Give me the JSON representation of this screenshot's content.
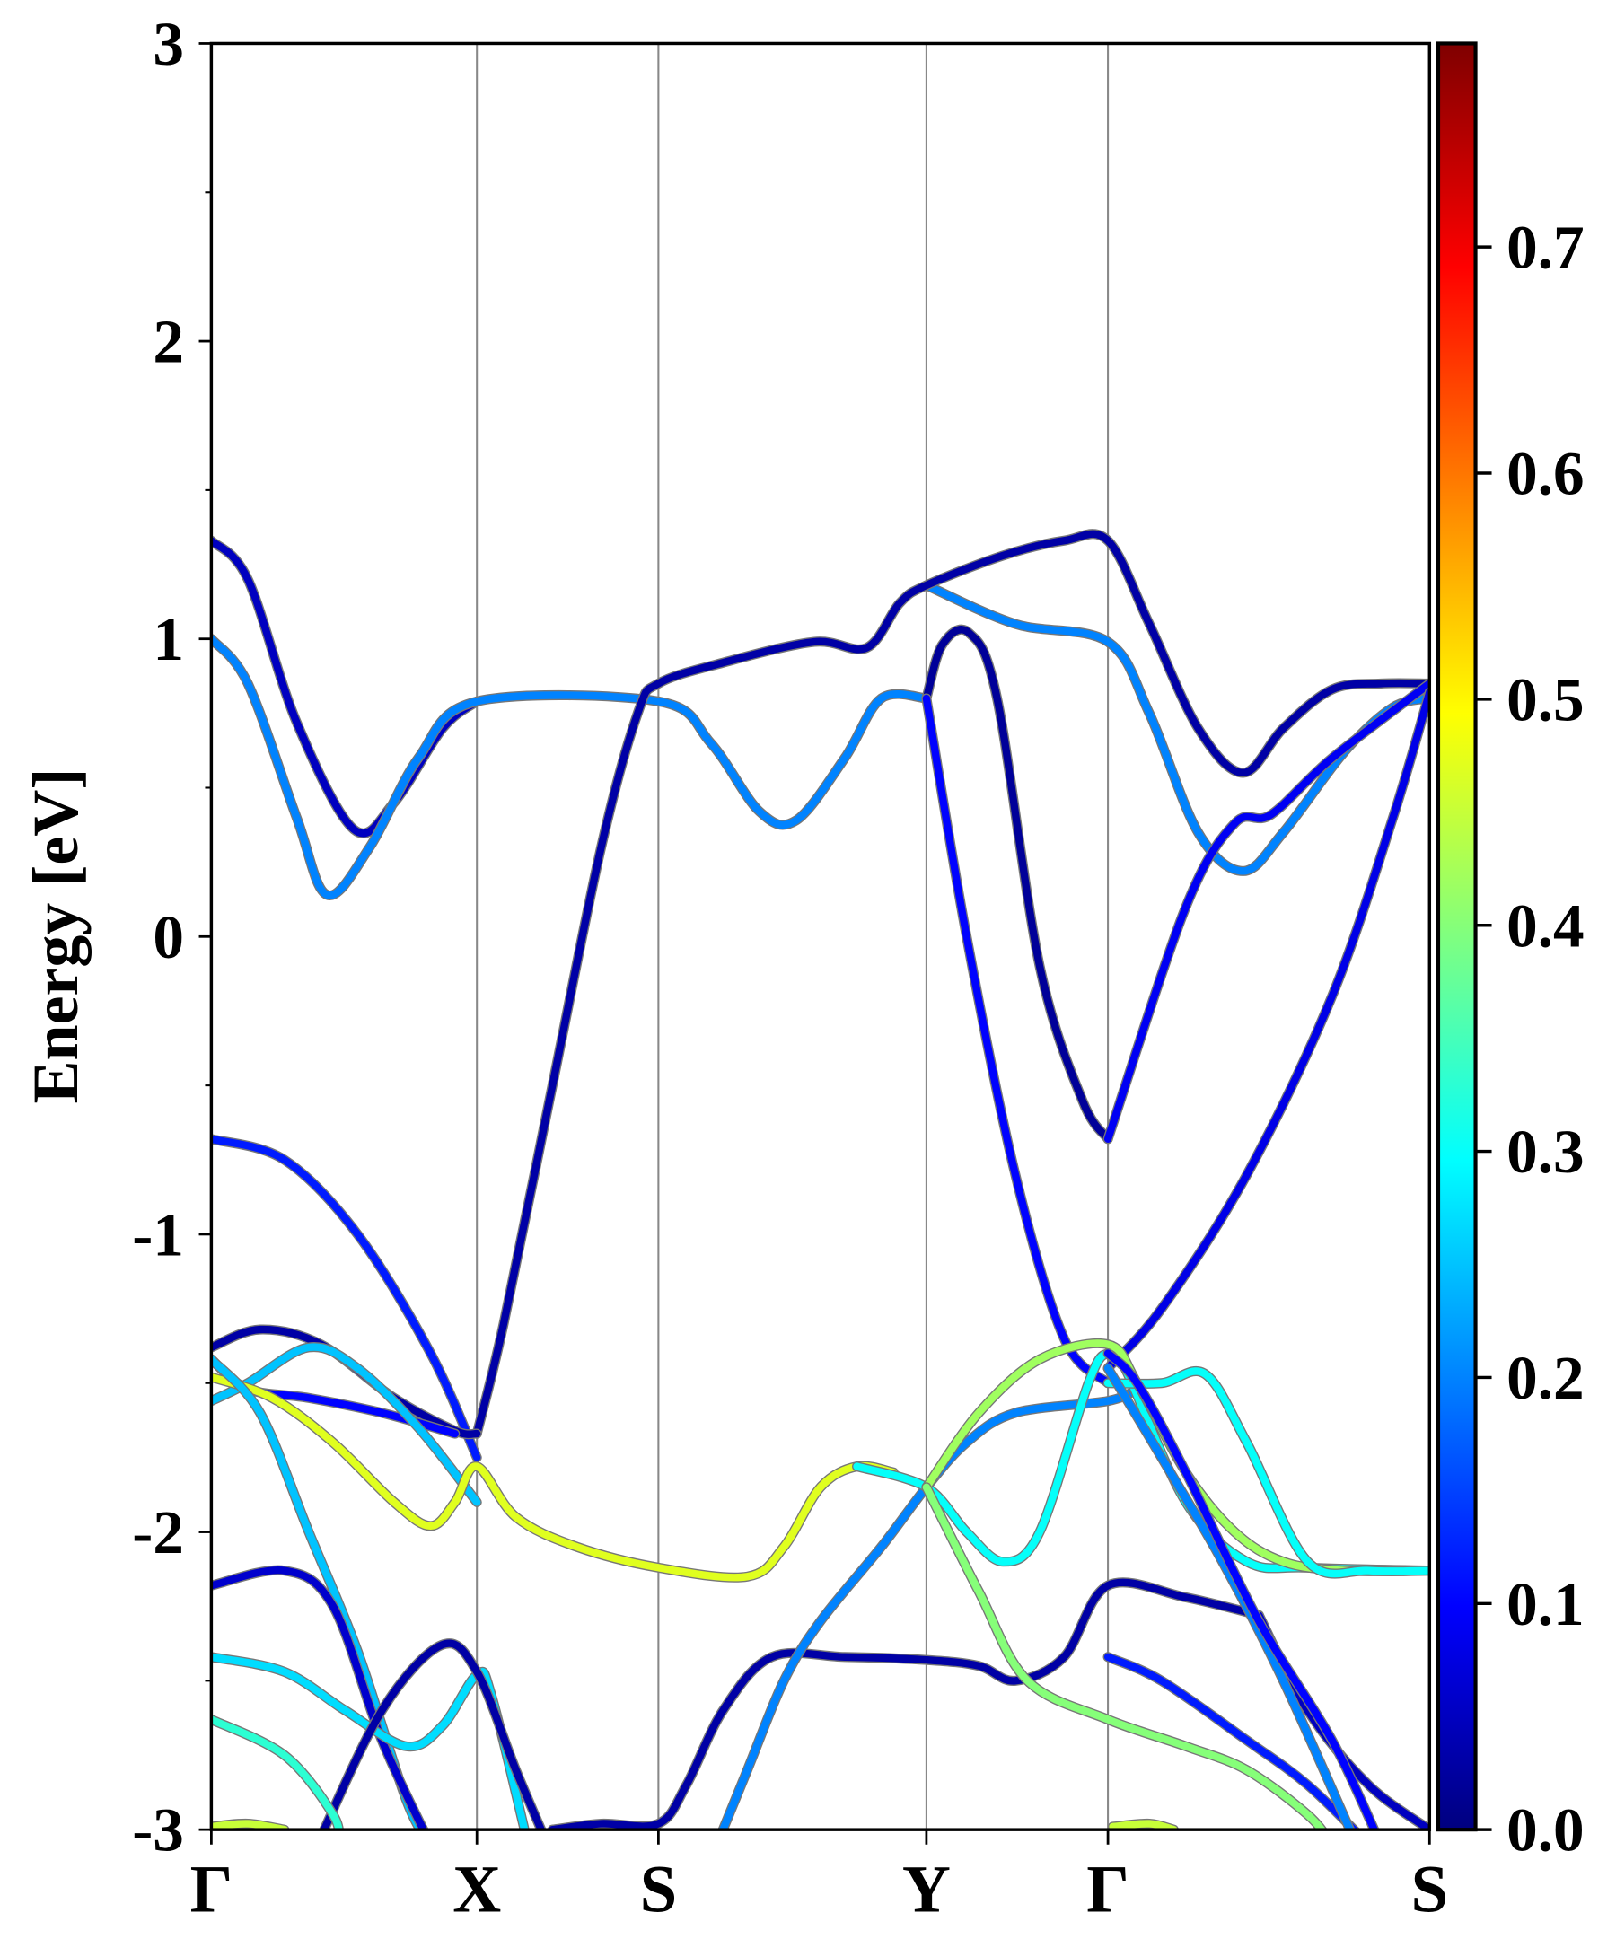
{
  "chart_data": {
    "type": "line",
    "title": "",
    "xlabel": "",
    "ylabel": "Energy [eV]",
    "ylim": [
      -3,
      3
    ],
    "yticks": [
      "-3",
      "-2",
      "-1",
      "0",
      "1",
      "2",
      "3"
    ],
    "ytick_values": [
      -3,
      -2,
      -1,
      0,
      1,
      2,
      3
    ],
    "kpoints": [
      {
        "label": "Γ",
        "k": 0.0
      },
      {
        "label": "X",
        "k": 0.218
      },
      {
        "label": "S",
        "k": 0.367
      },
      {
        "label": "Y",
        "k": 0.587
      },
      {
        "label": "Γ",
        "k": 0.736
      },
      {
        "label": "S",
        "k": 1.0
      }
    ],
    "colorbar": {
      "colormap": "jet",
      "range": [
        0.0,
        0.79
      ],
      "ticks": [
        "0.0",
        "0.1",
        "0.2",
        "0.3",
        "0.4",
        "0.5",
        "0.6",
        "0.7"
      ],
      "tick_values": [
        0,
        0.1,
        0.2,
        0.3,
        0.4,
        0.5,
        0.6,
        0.7
      ]
    },
    "bands": [
      {
        "weight": 0.05,
        "points": [
          [
            0,
            1.33
          ],
          [
            0.03,
            1.2
          ],
          [
            0.07,
            0.72
          ],
          [
            0.117,
            0.36
          ],
          [
            0.15,
            0.45
          ],
          [
            0.19,
            0.7
          ],
          [
            0.218,
            0.79
          ]
        ]
      },
      {
        "weight": 0.2,
        "points": [
          [
            0,
            1.0
          ],
          [
            0.03,
            0.85
          ],
          [
            0.07,
            0.4
          ],
          [
            0.095,
            0.14
          ],
          [
            0.13,
            0.3
          ],
          [
            0.17,
            0.6
          ],
          [
            0.218,
            0.79
          ],
          [
            0.367,
            0.79
          ],
          [
            0.41,
            0.65
          ],
          [
            0.45,
            0.42
          ],
          [
            0.48,
            0.39
          ],
          [
            0.52,
            0.6
          ],
          [
            0.55,
            0.8
          ],
          [
            0.587,
            0.8
          ]
        ]
      },
      {
        "weight": 0.2,
        "points": [
          [
            0.587,
            1.18
          ],
          [
            0.66,
            1.05
          ],
          [
            0.736,
            0.99
          ],
          [
            0.77,
            0.75
          ],
          [
            0.81,
            0.35
          ],
          [
            0.847,
            0.22
          ],
          [
            0.88,
            0.35
          ],
          [
            0.93,
            0.62
          ],
          [
            0.97,
            0.77
          ],
          [
            1.0,
            0.8
          ]
        ]
      },
      {
        "weight": 0.03,
        "points": [
          [
            0.218,
            -1.67
          ],
          [
            0.24,
            -1.3
          ],
          [
            0.28,
            -0.5
          ],
          [
            0.32,
            0.3
          ],
          [
            0.35,
            0.75
          ],
          [
            0.367,
            0.85
          ],
          [
            0.42,
            0.92
          ],
          [
            0.495,
            0.99
          ],
          [
            0.538,
            0.97
          ],
          [
            0.565,
            1.12
          ],
          [
            0.587,
            1.18
          ],
          [
            0.65,
            1.28
          ],
          [
            0.7,
            1.33
          ],
          [
            0.736,
            1.33
          ],
          [
            0.77,
            1.05
          ],
          [
            0.81,
            0.7
          ],
          [
            0.847,
            0.55
          ],
          [
            0.88,
            0.7
          ],
          [
            0.92,
            0.83
          ],
          [
            0.96,
            0.85
          ],
          [
            1.0,
            0.85
          ]
        ]
      },
      {
        "weight": 0.02,
        "points": [
          [
            0.587,
            0.8
          ],
          [
            0.6,
            0.98
          ],
          [
            0.622,
            1.02
          ],
          [
            0.645,
            0.8
          ],
          [
            0.68,
            -0.1
          ],
          [
            0.715,
            -0.55
          ],
          [
            0.736,
            -0.68
          ]
        ]
      },
      {
        "weight": 0.09,
        "points": [
          [
            0.736,
            -0.68
          ],
          [
            0.8,
            0.1
          ],
          [
            0.84,
            0.38
          ],
          [
            0.87,
            0.41
          ],
          [
            0.92,
            0.6
          ],
          [
            1.0,
            0.85
          ]
        ]
      },
      {
        "weight": 0.1,
        "points": [
          [
            0.587,
            0.8
          ],
          [
            0.62,
            0.0
          ],
          [
            0.66,
            -0.8
          ],
          [
            0.7,
            -1.35
          ],
          [
            0.736,
            -1.5
          ]
        ]
      },
      {
        "weight": 0.08,
        "points": [
          [
            0.736,
            -1.45
          ],
          [
            0.78,
            -1.25
          ],
          [
            0.85,
            -0.8
          ],
          [
            0.92,
            -0.2
          ],
          [
            0.97,
            0.4
          ],
          [
            1.0,
            0.82
          ]
        ]
      },
      {
        "weight": 0.12,
        "points": [
          [
            0,
            -0.68
          ],
          [
            0.06,
            -0.75
          ],
          [
            0.12,
            -1.0
          ],
          [
            0.18,
            -1.4
          ],
          [
            0.218,
            -1.75
          ]
        ]
      },
      {
        "weight": 0.03,
        "points": [
          [
            0,
            -1.38
          ],
          [
            0.04,
            -1.32
          ],
          [
            0.09,
            -1.37
          ],
          [
            0.15,
            -1.55
          ],
          [
            0.2,
            -1.66
          ],
          [
            0.218,
            -1.67
          ]
        ]
      },
      {
        "weight": 0.1,
        "points": [
          [
            0,
            -1.42
          ],
          [
            0.03,
            -1.52
          ],
          [
            0.08,
            -1.55
          ],
          [
            0.14,
            -1.6
          ],
          [
            0.2,
            -1.67
          ]
        ]
      },
      {
        "weight": 0.25,
        "points": [
          [
            0,
            -1.56
          ],
          [
            0.03,
            -1.5
          ],
          [
            0.08,
            -1.38
          ],
          [
            0.12,
            -1.45
          ],
          [
            0.17,
            -1.65
          ],
          [
            0.218,
            -1.9
          ]
        ]
      },
      {
        "weight": 0.47,
        "points": [
          [
            0,
            -1.48
          ],
          [
            0.05,
            -1.55
          ],
          [
            0.1,
            -1.7
          ],
          [
            0.15,
            -1.9
          ],
          [
            0.18,
            -1.98
          ],
          [
            0.2,
            -1.9
          ],
          [
            0.218,
            -1.78
          ],
          [
            0.25,
            -1.95
          ],
          [
            0.3,
            -2.05
          ],
          [
            0.367,
            -2.12
          ],
          [
            0.44,
            -2.15
          ],
          [
            0.47,
            -2.05
          ],
          [
            0.5,
            -1.85
          ],
          [
            0.53,
            -1.78
          ],
          [
            0.56,
            -1.8
          ]
        ]
      },
      {
        "weight": 0.25,
        "points": [
          [
            0,
            -1.42
          ],
          [
            0.04,
            -1.6
          ],
          [
            0.08,
            -2.0
          ],
          [
            0.12,
            -2.4
          ],
          [
            0.16,
            -2.9
          ],
          [
            0.18,
            -3.05
          ]
        ]
      },
      {
        "weight": 0.06,
        "points": [
          [
            0,
            -2.18
          ],
          [
            0.06,
            -2.13
          ],
          [
            0.1,
            -2.25
          ],
          [
            0.14,
            -2.7
          ],
          [
            0.18,
            -3.05
          ]
        ]
      },
      {
        "weight": 0.27,
        "points": [
          [
            0,
            -2.42
          ],
          [
            0.06,
            -2.47
          ],
          [
            0.11,
            -2.6
          ],
          [
            0.16,
            -2.72
          ],
          [
            0.19,
            -2.65
          ],
          [
            0.218,
            -2.48
          ],
          [
            0.23,
            -2.55
          ],
          [
            0.26,
            -3.05
          ]
        ]
      },
      {
        "weight": 0.03,
        "points": [
          [
            0.087,
            -3.05
          ],
          [
            0.14,
            -2.6
          ],
          [
            0.189,
            -2.38
          ],
          [
            0.218,
            -2.47
          ],
          [
            0.25,
            -2.8
          ],
          [
            0.276,
            -3.05
          ]
        ]
      },
      {
        "weight": 0.33,
        "points": [
          [
            0,
            -2.63
          ],
          [
            0.06,
            -2.75
          ],
          [
            0.1,
            -2.95
          ],
          [
            0.105,
            -3.05
          ]
        ]
      },
      {
        "weight": 0.03,
        "points": [
          [
            0.28,
            -3.0
          ],
          [
            0.32,
            -2.98
          ],
          [
            0.367,
            -2.98
          ],
          [
            0.39,
            -2.85
          ],
          [
            0.42,
            -2.6
          ],
          [
            0.46,
            -2.42
          ],
          [
            0.52,
            -2.42
          ],
          [
            0.587,
            -2.43
          ],
          [
            0.63,
            -2.45
          ],
          [
            0.66,
            -2.5
          ],
          [
            0.7,
            -2.42
          ],
          [
            0.736,
            -2.18
          ],
          [
            0.8,
            -2.22
          ],
          [
            0.86,
            -2.28
          ]
        ]
      },
      {
        "weight": 0.2,
        "points": [
          [
            0.415,
            -3.05
          ],
          [
            0.44,
            -2.8
          ],
          [
            0.47,
            -2.5
          ],
          [
            0.5,
            -2.3
          ],
          [
            0.55,
            -2.05
          ],
          [
            0.587,
            -1.85
          ],
          [
            0.62,
            -1.7
          ],
          [
            0.66,
            -1.6
          ],
          [
            0.736,
            -1.56
          ],
          [
            0.76,
            -1.52
          ]
        ]
      },
      {
        "weight": 0.3,
        "points": [
          [
            0.53,
            -1.78
          ],
          [
            0.587,
            -1.85
          ],
          [
            0.62,
            -2.0
          ],
          [
            0.65,
            -2.1
          ],
          [
            0.68,
            -2.0
          ],
          [
            0.72,
            -1.5
          ],
          [
            0.736,
            -1.4
          ],
          [
            0.75,
            -1.45
          ],
          [
            0.8,
            -1.9
          ],
          [
            0.85,
            -2.1
          ],
          [
            0.9,
            -2.12
          ],
          [
            1.0,
            -2.13
          ]
        ]
      },
      {
        "weight": 0.42,
        "points": [
          [
            0.587,
            -1.85
          ],
          [
            0.63,
            -1.6
          ],
          [
            0.68,
            -1.42
          ],
          [
            0.736,
            -1.37
          ],
          [
            0.76,
            -1.5
          ],
          [
            0.8,
            -1.8
          ],
          [
            0.84,
            -2.0
          ],
          [
            0.88,
            -2.1
          ],
          [
            0.93,
            -2.13
          ],
          [
            1.0,
            -2.13
          ]
        ]
      },
      {
        "weight": 0.3,
        "points": [
          [
            0.736,
            -1.5
          ],
          [
            0.78,
            -1.5
          ],
          [
            0.816,
            -1.47
          ],
          [
            0.85,
            -1.7
          ],
          [
            0.9,
            -2.1
          ],
          [
            0.95,
            -2.13
          ],
          [
            1.0,
            -2.13
          ]
        ]
      },
      {
        "weight": 0.4,
        "points": [
          [
            0.587,
            -1.85
          ],
          [
            0.63,
            -2.2
          ],
          [
            0.67,
            -2.5
          ],
          [
            0.736,
            -2.63
          ],
          [
            0.8,
            -2.72
          ],
          [
            0.85,
            -2.8
          ],
          [
            0.9,
            -2.95
          ],
          [
            0.92,
            -3.05
          ]
        ]
      },
      {
        "weight": 0.12,
        "points": [
          [
            0.736,
            -2.42
          ],
          [
            0.78,
            -2.5
          ],
          [
            0.85,
            -2.7
          ],
          [
            0.9,
            -2.85
          ],
          [
            0.95,
            -3.05
          ]
        ]
      },
      {
        "weight": 0.05,
        "points": [
          [
            0.86,
            -2.28
          ],
          [
            0.9,
            -2.6
          ],
          [
            0.95,
            -2.85
          ],
          [
            1.0,
            -3.0
          ]
        ]
      },
      {
        "weight": 0.2,
        "points": [
          [
            0.736,
            -1.45
          ],
          [
            0.78,
            -1.75
          ],
          [
            0.83,
            -2.1
          ],
          [
            0.88,
            -2.5
          ],
          [
            0.94,
            -3.05
          ]
        ]
      },
      {
        "weight": 0.1,
        "points": [
          [
            0.736,
            -1.4
          ],
          [
            0.76,
            -1.5
          ],
          [
            0.8,
            -1.8
          ],
          [
            0.86,
            -2.3
          ],
          [
            0.92,
            -2.7
          ],
          [
            0.96,
            -3.05
          ]
        ]
      },
      {
        "weight": 0.45,
        "points": [
          [
            0,
            -2.99
          ],
          [
            0.03,
            -2.98
          ],
          [
            0.06,
            -3.0
          ]
        ]
      },
      {
        "weight": 0.45,
        "points": [
          [
            0.74,
            -2.99
          ],
          [
            0.77,
            -2.98
          ],
          [
            0.79,
            -3.0
          ]
        ]
      }
    ]
  }
}
